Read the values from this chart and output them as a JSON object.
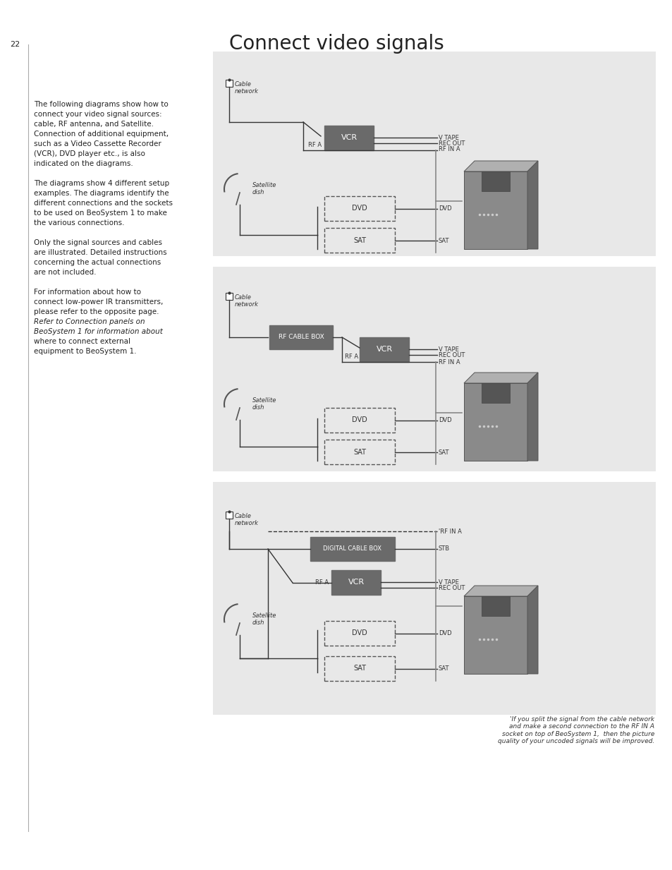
{
  "title": "Connect video signals",
  "page_num": "22",
  "bg_color": "#ffffff",
  "panel_bg": "#e8e8e8",
  "text_color": "#222222",
  "box_dark": "#6a6a6a",
  "box_dashed_bg": "#e8e8e8",
  "body_text": [
    "The following diagrams show how to",
    "connect your video signal sources:",
    "cable, RF antenna, and Satellite.",
    "Connection of additional equipment,",
    "such as a Video Cassette Recorder",
    "(VCR), DVD player etc., is also",
    "indicated on the diagrams.",
    "",
    "The diagrams show 4 different setup",
    "examples. The diagrams identify the",
    "different connections and the sockets",
    "to be used on BeoSystem 1 to make",
    "the various connections.",
    "",
    "Only the signal sources and cables",
    "are illustrated. Detailed instructions",
    "concerning the actual connections",
    "are not included.",
    "",
    "For information about how to",
    "connect low-power IR transmitters,",
    "please refer to the opposite page.",
    "Refer to Connection panels on",
    "BeoSystem 1 for information about",
    "where to connect external",
    "equipment to BeoSystem 1."
  ],
  "italic_lines": [
    22,
    23
  ],
  "footnote": "'If you split the signal from the cable network\nand make a second connection to the RF IN A\nsocket on top of BeoSystem 1,  then the picture\nquality of your uncoded signals will be improved."
}
